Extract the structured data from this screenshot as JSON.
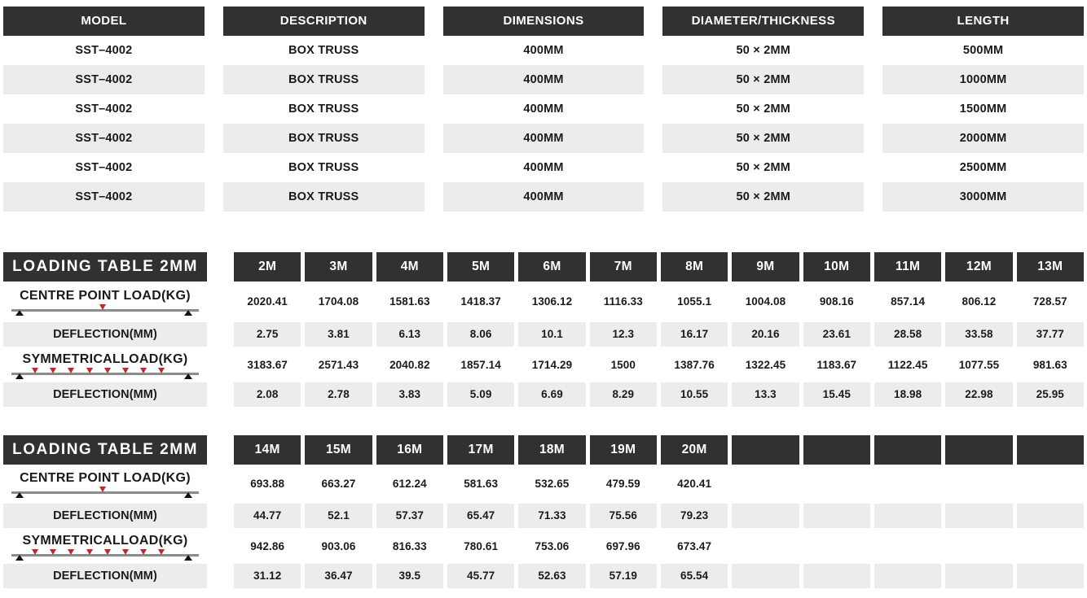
{
  "colors": {
    "header_bg": "#313131",
    "header_text": "#ffffff",
    "alt_row_bg": "#ececec",
    "body_text": "#1a1a1a",
    "load_arrow_red": "#c1272d",
    "beam_line_gray": "#8c8c8c"
  },
  "spec_table": {
    "headers": [
      "MODEL",
      "DESCRIPTION",
      "DIMENSIONS",
      "DIAMETER/THICKNESS",
      "LENGTH"
    ],
    "rows": [
      [
        "SST–4002",
        "BOX TRUSS",
        "400MM",
        "50 × 2MM",
        "500MM"
      ],
      [
        "SST–4002",
        "BOX TRUSS",
        "400MM",
        "50 × 2MM",
        "1000MM"
      ],
      [
        "SST–4002",
        "BOX TRUSS",
        "400MM",
        "50 × 2MM",
        "1500MM"
      ],
      [
        "SST–4002",
        "BOX TRUSS",
        "400MM",
        "50 × 2MM",
        "2000MM"
      ],
      [
        "SST–4002",
        "BOX TRUSS",
        "400MM",
        "50 × 2MM",
        "2500MM"
      ],
      [
        "SST–4002",
        "BOX TRUSS",
        "400MM",
        "50 × 2MM",
        "3000MM"
      ]
    ]
  },
  "loading_tables": [
    {
      "title": "LOADING TABLE 2MM",
      "span_columns": [
        "2M",
        "3M",
        "4M",
        "5M",
        "6M",
        "7M",
        "8M",
        "9M",
        "10M",
        "11M",
        "12M",
        "13M"
      ],
      "rows": [
        {
          "label": "CENTRE POINT LOAD(KG)",
          "diagram": "centre-point-load",
          "shaded": false,
          "values": [
            "2020.41",
            "1704.08",
            "1581.63",
            "1418.37",
            "1306.12",
            "1116.33",
            "1055.1",
            "1004.08",
            "908.16",
            "857.14",
            "806.12",
            "728.57"
          ]
        },
        {
          "label": "DEFLECTION(MM)",
          "shaded": true,
          "values": [
            "2.75",
            "3.81",
            "6.13",
            "8.06",
            "10.1",
            "12.3",
            "16.17",
            "20.16",
            "23.61",
            "28.58",
            "33.58",
            "37.77"
          ]
        },
        {
          "label": "SYMMETRICALLOAD(KG)",
          "diagram": "symmetrical-load",
          "shaded": false,
          "values": [
            "3183.67",
            "2571.43",
            "2040.82",
            "1857.14",
            "1714.29",
            "1500",
            "1387.76",
            "1322.45",
            "1183.67",
            "1122.45",
            "1077.55",
            "981.63"
          ]
        },
        {
          "label": "DEFLECTION(MM)",
          "shaded": true,
          "values": [
            "2.08",
            "2.78",
            "3.83",
            "5.09",
            "6.69",
            "8.29",
            "10.55",
            "13.3",
            "15.45",
            "18.98",
            "22.98",
            "25.95"
          ]
        }
      ]
    },
    {
      "title": "LOADING TABLE 2MM",
      "span_columns": [
        "14M",
        "15M",
        "16M",
        "17M",
        "18M",
        "19M",
        "20M",
        "",
        "",
        "",
        "",
        ""
      ],
      "rows": [
        {
          "label": "CENTRE POINT LOAD(KG)",
          "diagram": "centre-point-load",
          "shaded": false,
          "values": [
            "693.88",
            "663.27",
            "612.24",
            "581.63",
            "532.65",
            "479.59",
            "420.41",
            "",
            "",
            "",
            "",
            ""
          ]
        },
        {
          "label": "DEFLECTION(MM)",
          "shaded": true,
          "values": [
            "44.77",
            "52.1",
            "57.37",
            "65.47",
            "71.33",
            "75.56",
            "79.23",
            "",
            "",
            "",
            "",
            ""
          ]
        },
        {
          "label": "SYMMETRICALLOAD(KG)",
          "diagram": "symmetrical-load",
          "shaded": false,
          "values": [
            "942.86",
            "903.06",
            "816.33",
            "780.61",
            "753.06",
            "697.96",
            "673.47",
            "",
            "",
            "",
            "",
            ""
          ]
        },
        {
          "label": "DEFLECTION(MM)",
          "shaded": true,
          "values": [
            "31.12",
            "36.47",
            "39.5",
            "45.77",
            "52.63",
            "57.19",
            "65.54",
            "",
            "",
            "",
            "",
            ""
          ]
        }
      ]
    }
  ]
}
